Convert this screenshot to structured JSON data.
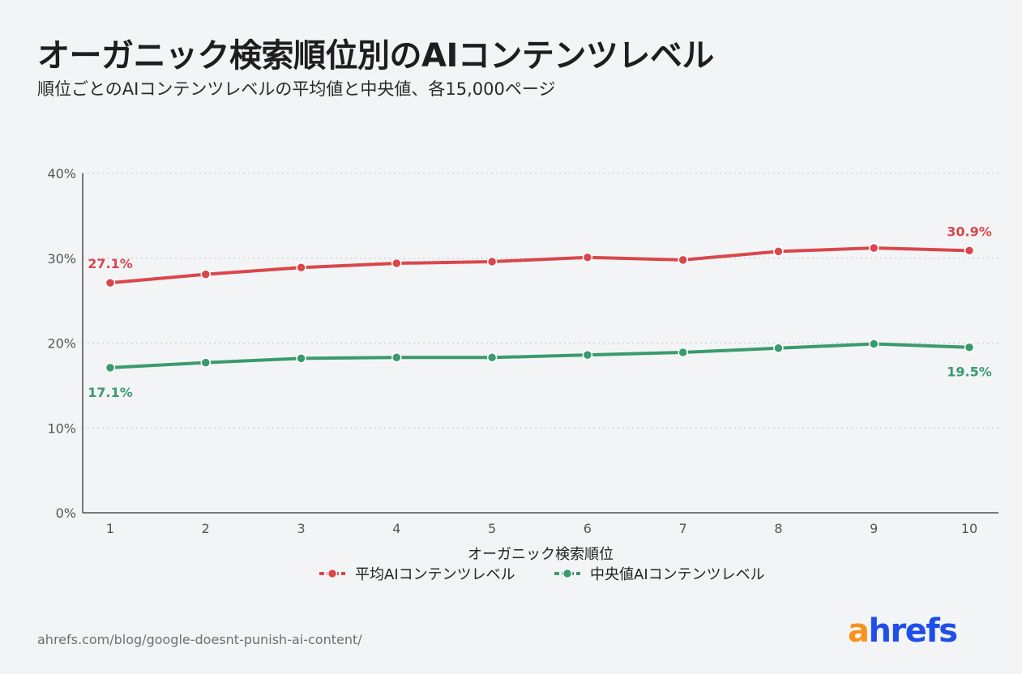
{
  "title": "オーガニック検索順位別のAIコンテンツレベル",
  "subtitle": "順位ごとのAIコンテンツレベルの平均値と中央値、各15,000ページ",
  "source": "ahrefs.com/blog/google-doesnt-punish-ai-content/",
  "logo": {
    "accent": "a",
    "rest": "hrefs",
    "accent_color": "#f7941d",
    "main_color": "#1f4ee8"
  },
  "chart_data": {
    "type": "line",
    "x": [
      1,
      2,
      3,
      4,
      5,
      6,
      7,
      8,
      9,
      10
    ],
    "xlabel": "オーガニック検索順位",
    "ylabel": "",
    "ylim": [
      0,
      40
    ],
    "yticks": [
      "0%",
      "10%",
      "20%",
      "30%",
      "40%"
    ],
    "grid": true,
    "legend": "bottom-center",
    "series": [
      {
        "name": "平均AIコンテンツレベル",
        "color": "#d9474b",
        "values": [
          27.1,
          28.1,
          28.9,
          29.4,
          29.6,
          30.1,
          29.8,
          30.8,
          31.2,
          30.9
        ],
        "first_label": "27.1%",
        "last_label": "30.9%"
      },
      {
        "name": "中央値AIコンテンツレベル",
        "color": "#3a9a6e",
        "values": [
          17.1,
          17.7,
          18.2,
          18.3,
          18.3,
          18.6,
          18.9,
          19.4,
          19.9,
          19.5
        ],
        "first_label": "17.1%",
        "last_label": "19.5%"
      }
    ]
  }
}
